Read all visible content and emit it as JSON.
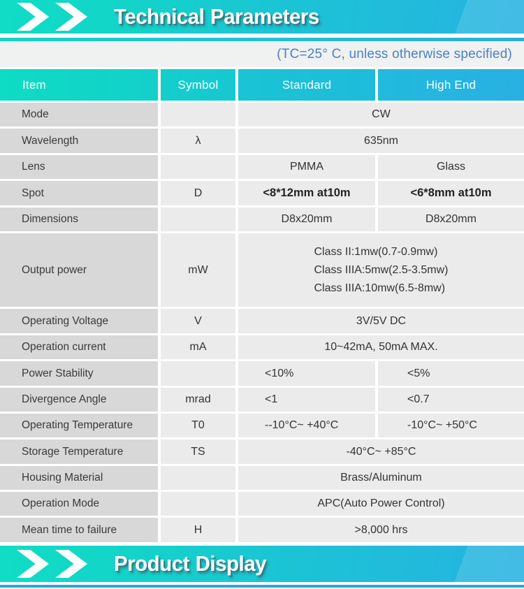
{
  "top_banner": {
    "title": "Technical Parameters"
  },
  "note": {
    "text": "(TC=25° C, unless otherwise specified)"
  },
  "table": {
    "headers": {
      "item": "Item",
      "symbol": "Symbol",
      "standard": "Standard",
      "high_end": "High End"
    },
    "rows": [
      {
        "item": "Mode",
        "symbol": "",
        "value": "CW"
      },
      {
        "item": "Wavelength",
        "symbol": "λ",
        "value": "635nm"
      },
      {
        "item": "Lens",
        "symbol": "",
        "standard": "PMMA",
        "high_end": "Glass"
      },
      {
        "item": "Spot",
        "symbol": "D",
        "standard": "<8*12mm at10m",
        "high_end": "<6*8mm at10m"
      },
      {
        "item": "Dimensions",
        "symbol": "",
        "standard": "D8x20mm",
        "high_end": "D8x20mm"
      },
      {
        "item": "Output power",
        "symbol": "mW",
        "lines": [
          "Class II:1mw(0.7-0.9mw)",
          "Class IIIA:5mw(2.5-3.5mw)",
          "Class IIIA:10mw(6.5-8mw)"
        ]
      },
      {
        "item": "Operating Voltage",
        "symbol": "V",
        "value": "3V/5V DC"
      },
      {
        "item": "Operation current",
        "symbol": "mA",
        "value": "10~42mA, 50mA MAX."
      },
      {
        "item": "Power Stability",
        "symbol": "",
        "standard": "<10%",
        "high_end": "<5%"
      },
      {
        "item": "Divergence Angle",
        "symbol": "mrad",
        "standard": "<1",
        "high_end": "<0.7"
      },
      {
        "item": "Operating Temperature",
        "symbol": "T0",
        "standard": "--10°C~ +40°C",
        "high_end": "-10°C~ +50°C"
      },
      {
        "item": "Storage Temperature",
        "symbol": "TS",
        "value": "-40°C~ +85°C"
      },
      {
        "item": "Housing Material",
        "symbol": "",
        "value": "Brass/Aluminum"
      },
      {
        "item": "Operation Mode",
        "symbol": "",
        "value": "APC(Auto Power Control)"
      },
      {
        "item": "Mean time to failure",
        "symbol": "H",
        "value": ">8,000 hrs"
      }
    ]
  },
  "bottom_banner": {
    "title": "Product Display"
  },
  "colors": {
    "accent_teal": "#0fdec4",
    "accent_blue": "#28b1e1",
    "note_blue": "#4a80c8",
    "item_cell_bg": "#d8d8d8",
    "value_cell_bg": "#ebebeb"
  }
}
